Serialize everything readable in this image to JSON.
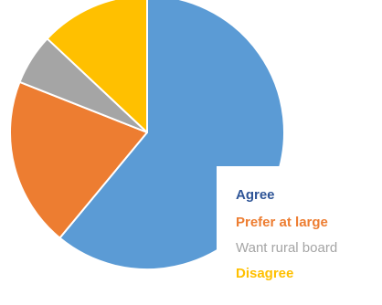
{
  "chart_data": {
    "type": "pie",
    "slices": [
      {
        "label": "Agree",
        "value": 61,
        "color": "#5b9bd5",
        "emphasis": "bold"
      },
      {
        "label": "Prefer at large",
        "value": 20,
        "color": "#ed7d31",
        "emphasis": "bold"
      },
      {
        "label": "Want rural board",
        "value": 6,
        "color": "#a5a5a5",
        "emphasis": "normal"
      },
      {
        "label": "Disagree",
        "value": 13,
        "color": "#ffc000",
        "emphasis": "bold"
      }
    ],
    "legend_text_colors": [
      "#2f5597",
      "#ed7d31",
      "#a5a5a5",
      "#ffc000"
    ],
    "start_angle": "12 o'clock",
    "direction": "clockwise",
    "legend_position": "bottom-right"
  }
}
